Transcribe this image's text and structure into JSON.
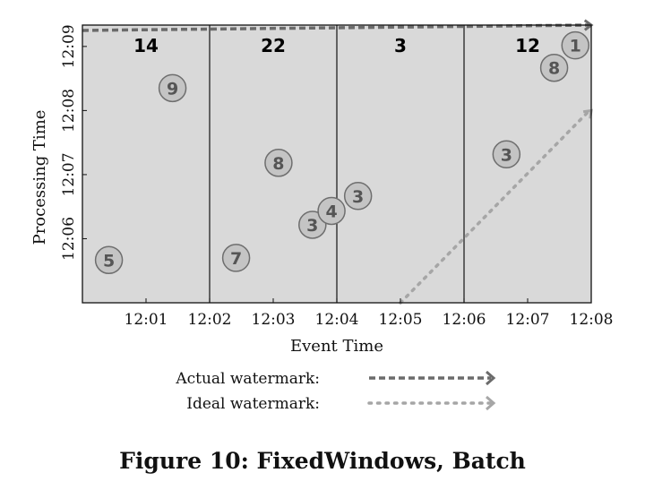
{
  "caption": "Figure 10: FixedWindows, Batch",
  "chart_data": {
    "type": "scatter",
    "xlabel": "Event Time",
    "ylabel": "Processing Time",
    "x_ticks": [
      "12:01",
      "12:02",
      "12:03",
      "12:04",
      "12:05",
      "12:06",
      "12:07",
      "12:08"
    ],
    "y_ticks": [
      "12:06",
      "12:07",
      "12:08",
      "12:09"
    ],
    "xlim": [
      "12:00",
      "12:08"
    ],
    "ylim": [
      "12:05",
      "12:09:20"
    ],
    "window_boundaries": [
      "12:02",
      "12:04",
      "12:06"
    ],
    "window_totals": [
      {
        "window": "12:00-12:02",
        "value": 14
      },
      {
        "window": "12:02-12:04",
        "value": 22
      },
      {
        "window": "12:04-12:06",
        "value": 3
      },
      {
        "window": "12:06-12:08",
        "value": 12
      }
    ],
    "points": [
      {
        "value": 5,
        "event_time": "12:00:25",
        "processing_time": "12:05:40"
      },
      {
        "value": 9,
        "event_time": "12:01:25",
        "processing_time": "12:08:21"
      },
      {
        "value": 7,
        "event_time": "12:02:25",
        "processing_time": "12:05:42"
      },
      {
        "value": 8,
        "event_time": "12:03:05",
        "processing_time": "12:07:11"
      },
      {
        "value": 3,
        "event_time": "12:03:37",
        "processing_time": "12:06:13"
      },
      {
        "value": 4,
        "event_time": "12:03:55",
        "processing_time": "12:06:26"
      },
      {
        "value": 3,
        "event_time": "12:04:20",
        "processing_time": "12:06:40"
      },
      {
        "value": 3,
        "event_time": "12:06:40",
        "processing_time": "12:07:19"
      },
      {
        "value": 8,
        "event_time": "12:07:25",
        "processing_time": "12:08:40"
      },
      {
        "value": 1,
        "event_time": "12:07:45",
        "processing_time": "12:09:01"
      }
    ],
    "series": [
      {
        "name": "Actual watermark",
        "style": "dashed",
        "color": "#6b6b6b",
        "x": [
          "12:00",
          "12:08"
        ],
        "y": [
          "12:09:15",
          "12:09:20"
        ]
      },
      {
        "name": "Ideal watermark",
        "style": "dotted",
        "color": "#a6a6a6",
        "x": [
          "12:05",
          "12:08"
        ],
        "y": [
          "12:05",
          "12:08"
        ]
      }
    ],
    "grid": false,
    "legend": "below"
  }
}
